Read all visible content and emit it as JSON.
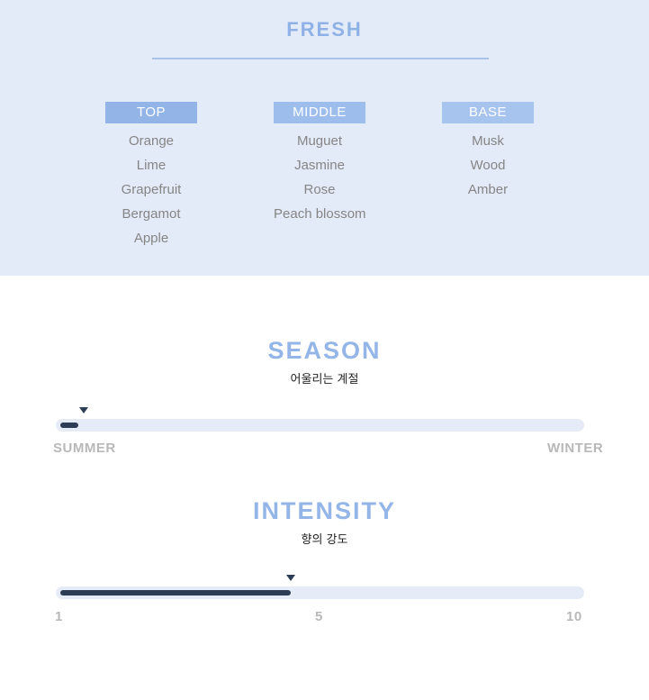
{
  "fresh": {
    "title": "FRESH",
    "accent_color": "#8fb2e6",
    "columns": [
      {
        "label": "TOP",
        "color": "#92b4e6",
        "items": [
          "Orange",
          "Lime",
          "Grapefruit",
          "Bergamot",
          "Apple"
        ]
      },
      {
        "label": "MIDDLE",
        "color": "#9dbdec",
        "items": [
          "Muguet",
          "Jasmine",
          "Rose",
          "Peach blossom"
        ]
      },
      {
        "label": "BASE",
        "color": "#a7c4ef",
        "items": [
          "Musk",
          "Wood",
          "Amber"
        ]
      }
    ]
  },
  "season": {
    "title": "SEASON",
    "subtitle": "어울리는 계절",
    "start_label": "SUMMER",
    "end_label": "WINTER",
    "level": 0.03
  },
  "intensity": {
    "title": "INTENSITY",
    "subtitle": "향의 강도",
    "min": 1,
    "max": 10,
    "value": 5,
    "labels": [
      "1",
      "5",
      "10"
    ]
  }
}
